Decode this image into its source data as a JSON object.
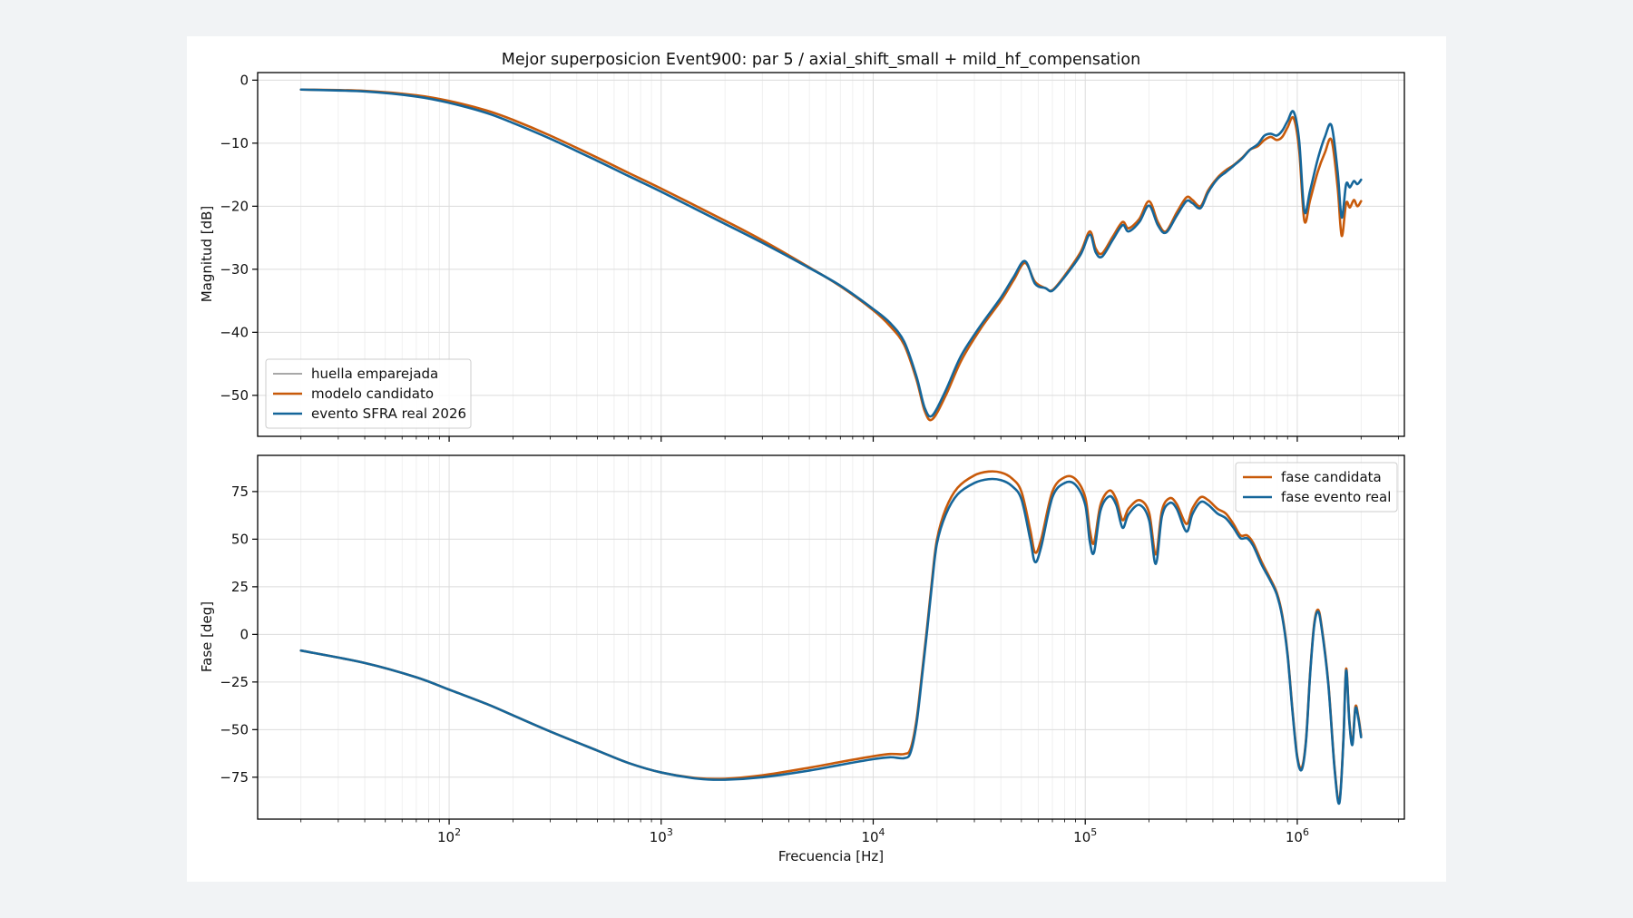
{
  "title": "Mejor superposicion Event900: par 5 / axial_shift_small + mild_hf_compensation",
  "colors": {
    "fingerprint": "#8c8c8c",
    "candidate": "#c85a0a",
    "real": "#15669a"
  },
  "chart_data": [
    {
      "type": "line",
      "panel": "top",
      "ylabel": "Magnitud [dB]",
      "xscale": "log",
      "xlim": [
        12.5,
        3200000
      ],
      "ylim": [
        -56.5,
        1.2
      ],
      "yticks": [
        0,
        -10,
        -20,
        -30,
        -40,
        -50
      ],
      "legend": {
        "location": "lower-left",
        "entries": [
          "huella emparejada",
          "modelo candidato",
          "evento SFRA real 2026"
        ]
      },
      "series": [
        {
          "name": "huella emparejada",
          "color": "#8c8c8c",
          "x": [],
          "y": []
        },
        {
          "name": "modelo candidato",
          "color": "#c85a0a",
          "x": [
            20,
            40,
            70,
            100,
            150,
            200,
            300,
            500,
            700,
            1000,
            2000,
            3000,
            5000,
            7000,
            10000,
            12000,
            14000,
            16000,
            17500,
            19000,
            22000,
            26000,
            32000,
            40000,
            46000,
            52000,
            58000,
            65000,
            70000,
            80000,
            95000,
            105000,
            112000,
            120000,
            135000,
            150000,
            160000,
            180000,
            200000,
            220000,
            240000,
            270000,
            300000,
            320000,
            350000,
            380000,
            420000,
            460000,
            500000,
            550000,
            600000,
            650000,
            700000,
            750000,
            800000,
            850000,
            900000,
            960000,
            1020000,
            1080000,
            1150000,
            1250000,
            1350000,
            1450000,
            1550000,
            1620000,
            1700000,
            1770000,
            1850000,
            1920000,
            2000000
          ],
          "y": [
            -1.5,
            -1.7,
            -2.4,
            -3.3,
            -4.8,
            -6.3,
            -8.8,
            -12.3,
            -14.7,
            -17.2,
            -22.3,
            -25.4,
            -29.7,
            -32.7,
            -36.5,
            -39.0,
            -42.0,
            -47.5,
            -52.5,
            -53.8,
            -50.0,
            -44.5,
            -39.5,
            -35.0,
            -31.7,
            -29.0,
            -32.0,
            -33.0,
            -33.3,
            -31.0,
            -27.3,
            -24.0,
            -26.7,
            -27.5,
            -24.8,
            -22.5,
            -23.5,
            -22.0,
            -19.2,
            -22.5,
            -24.0,
            -21.0,
            -18.6,
            -19.0,
            -20.0,
            -17.5,
            -15.5,
            -14.3,
            -13.5,
            -12.3,
            -11.0,
            -10.5,
            -9.5,
            -9.0,
            -9.5,
            -9.0,
            -7.5,
            -6.0,
            -11.0,
            -22.3,
            -19.0,
            -14.5,
            -11.5,
            -9.5,
            -17.0,
            -24.7,
            -19.5,
            -20.2,
            -19.0,
            -20.0,
            -19.2
          ]
        },
        {
          "name": "evento SFRA real 2026",
          "color": "#15669a",
          "x": [
            20,
            40,
            70,
            100,
            150,
            200,
            300,
            500,
            700,
            1000,
            2000,
            3000,
            5000,
            7000,
            10000,
            12000,
            14000,
            16000,
            17500,
            19000,
            22000,
            26000,
            32000,
            40000,
            46000,
            52000,
            58000,
            65000,
            70000,
            80000,
            95000,
            105000,
            112000,
            120000,
            135000,
            150000,
            160000,
            180000,
            200000,
            220000,
            240000,
            270000,
            300000,
            320000,
            350000,
            380000,
            420000,
            460000,
            500000,
            550000,
            600000,
            650000,
            700000,
            750000,
            800000,
            850000,
            900000,
            960000,
            1020000,
            1080000,
            1150000,
            1250000,
            1350000,
            1450000,
            1550000,
            1620000,
            1700000,
            1770000,
            1850000,
            1920000,
            2000000
          ],
          "y": [
            -1.5,
            -1.8,
            -2.6,
            -3.6,
            -5.2,
            -6.8,
            -9.3,
            -12.8,
            -15.2,
            -17.7,
            -22.8,
            -25.8,
            -29.8,
            -32.6,
            -36.3,
            -38.5,
            -41.5,
            -47.0,
            -52.0,
            -53.2,
            -49.2,
            -43.7,
            -39.0,
            -34.5,
            -31.2,
            -28.7,
            -32.3,
            -33.0,
            -33.4,
            -31.2,
            -27.7,
            -24.5,
            -27.3,
            -28.0,
            -25.3,
            -23.0,
            -24.0,
            -22.5,
            -19.9,
            -23.0,
            -24.2,
            -21.5,
            -19.2,
            -19.5,
            -20.3,
            -17.8,
            -15.7,
            -14.6,
            -13.6,
            -12.4,
            -11.0,
            -10.2,
            -8.8,
            -8.5,
            -8.8,
            -8.0,
            -6.5,
            -5.0,
            -9.5,
            -20.8,
            -17.5,
            -12.5,
            -9.0,
            -7.2,
            -14.5,
            -21.8,
            -16.5,
            -17.0,
            -16.0,
            -16.5,
            -15.8
          ]
        }
      ]
    },
    {
      "type": "line",
      "panel": "bottom",
      "xlabel": "Frecuencia [Hz]",
      "ylabel": "Fase [deg]",
      "xscale": "log",
      "xlim": [
        12.5,
        3200000
      ],
      "ylim": [
        -97,
        94
      ],
      "yticks": [
        75,
        50,
        25,
        0,
        -25,
        -50,
        -75
      ],
      "xticks": [
        {
          "value": 100,
          "label": "10",
          "exp": "2"
        },
        {
          "value": 1000,
          "label": "10",
          "exp": "3"
        },
        {
          "value": 10000,
          "label": "10",
          "exp": "4"
        },
        {
          "value": 100000,
          "label": "10",
          "exp": "5"
        },
        {
          "value": 1000000,
          "label": "10",
          "exp": "6"
        }
      ],
      "legend": {
        "location": "upper-right",
        "entries": [
          "fase candidata",
          "fase evento real"
        ]
      },
      "series": [
        {
          "name": "fase candidata",
          "color": "#c85a0a",
          "x": [
            20,
            40,
            70,
            100,
            150,
            200,
            300,
            500,
            700,
            1000,
            1500,
            2000,
            3000,
            5000,
            7000,
            10000,
            12000,
            14000,
            15000,
            16000,
            17000,
            18000,
            19000,
            20000,
            22000,
            25000,
            30000,
            35000,
            40000,
            45000,
            50000,
            55000,
            58000,
            62000,
            70000,
            80000,
            90000,
            100000,
            105000,
            110000,
            118000,
            130000,
            140000,
            150000,
            160000,
            180000,
            200000,
            215000,
            230000,
            250000,
            270000,
            300000,
            320000,
            350000,
            380000,
            420000,
            460000,
            500000,
            540000,
            580000,
            620000,
            680000,
            740000,
            800000,
            850000,
            900000,
            950000,
            1000000,
            1050000,
            1100000,
            1150000,
            1200000,
            1250000,
            1300000,
            1400000,
            1500000,
            1580000,
            1650000,
            1700000,
            1760000,
            1820000,
            1880000,
            1940000,
            2000000
          ],
          "y": [
            -8.5,
            -15.0,
            -22.5,
            -29.0,
            -36.5,
            -42.5,
            -51.0,
            -61.0,
            -67.5,
            -72.5,
            -75.5,
            -75.8,
            -74.0,
            -70.0,
            -67.0,
            -64.0,
            -62.8,
            -62.8,
            -60.0,
            -45.0,
            -20.0,
            5.0,
            30.0,
            50.0,
            66.0,
            77.0,
            83.5,
            85.5,
            85.0,
            82.0,
            75.0,
            55.0,
            43.0,
            50.0,
            75.0,
            82.5,
            81.5,
            72.0,
            55.0,
            48.0,
            68.0,
            75.5,
            71.0,
            60.0,
            66.0,
            70.5,
            64.0,
            42.0,
            65.0,
            71.5,
            68.5,
            58.0,
            66.0,
            72.0,
            70.5,
            66.0,
            63.5,
            58.0,
            52.0,
            52.0,
            48.0,
            38.0,
            30.0,
            22.0,
            10.0,
            -10.0,
            -40.0,
            -64.0,
            -70.0,
            -55.0,
            -20.0,
            5.0,
            13.0,
            5.0,
            -25.0,
            -70.0,
            -87.5,
            -55.0,
            -18.0,
            -45.0,
            -57.0,
            -38.0,
            -43.0,
            -53.0
          ]
        },
        {
          "name": "fase evento real",
          "color": "#15669a",
          "x": [
            20,
            40,
            70,
            100,
            150,
            200,
            300,
            500,
            700,
            1000,
            1500,
            2000,
            3000,
            5000,
            7000,
            10000,
            12000,
            14000,
            15000,
            16000,
            17000,
            18000,
            19000,
            20000,
            22000,
            25000,
            30000,
            35000,
            40000,
            45000,
            50000,
            55000,
            58000,
            62000,
            70000,
            80000,
            90000,
            100000,
            105000,
            110000,
            118000,
            130000,
            140000,
            150000,
            160000,
            180000,
            200000,
            215000,
            230000,
            250000,
            270000,
            300000,
            320000,
            350000,
            380000,
            420000,
            460000,
            500000,
            540000,
            580000,
            620000,
            680000,
            740000,
            800000,
            850000,
            900000,
            950000,
            1000000,
            1050000,
            1100000,
            1150000,
            1200000,
            1250000,
            1300000,
            1400000,
            1500000,
            1580000,
            1650000,
            1700000,
            1760000,
            1820000,
            1880000,
            1940000,
            2000000
          ],
          "y": [
            -8.5,
            -15.0,
            -22.5,
            -29.0,
            -36.5,
            -42.5,
            -51.0,
            -61.0,
            -67.5,
            -72.5,
            -75.8,
            -76.3,
            -75.0,
            -71.5,
            -68.5,
            -65.5,
            -64.5,
            -65.0,
            -62.0,
            -47.0,
            -22.0,
            3.0,
            28.0,
            48.0,
            63.0,
            73.5,
            79.5,
            81.5,
            81.0,
            78.0,
            71.0,
            50.0,
            38.0,
            46.0,
            72.0,
            79.5,
            78.5,
            68.0,
            49.0,
            43.0,
            65.0,
            72.5,
            68.0,
            56.0,
            63.0,
            68.0,
            60.0,
            37.0,
            62.0,
            69.0,
            66.0,
            54.0,
            63.0,
            69.5,
            68.0,
            63.5,
            61.0,
            56.0,
            50.5,
            50.5,
            46.5,
            36.5,
            29.0,
            21.0,
            9.0,
            -11.0,
            -41.0,
            -65.0,
            -71.0,
            -56.0,
            -21.0,
            4.0,
            12.0,
            4.0,
            -26.0,
            -71.0,
            -88.5,
            -56.0,
            -19.0,
            -46.0,
            -58.0,
            -39.0,
            -44.0,
            -54.0
          ]
        }
      ]
    }
  ]
}
